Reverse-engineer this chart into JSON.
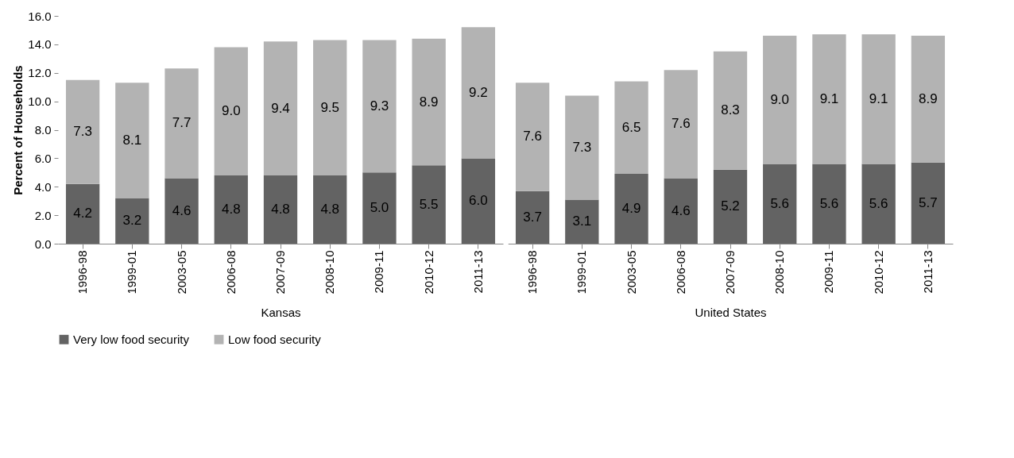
{
  "chart_data": [
    {
      "type": "bar",
      "stacked": true,
      "xlabel": "Kansas",
      "ylabel": "Percent of Households",
      "categories": [
        "1996-98",
        "1999-01",
        "2003-05",
        "2006-08",
        "2007-09",
        "2008-10",
        "2009-11",
        "2010-12",
        "2011-13"
      ],
      "series": [
        {
          "name": "Very low food security",
          "color": "#636363",
          "values": [
            4.2,
            3.2,
            4.6,
            4.8,
            4.8,
            4.8,
            5.0,
            5.5,
            6.0
          ],
          "value_labels": [
            "4.2",
            "3.2",
            "4.6",
            "4.8",
            "4.8",
            "4.8",
            "5.0",
            "5.5",
            "6.0"
          ]
        },
        {
          "name": "Low food security",
          "color": "#b3b3b3",
          "values": [
            7.3,
            8.1,
            7.7,
            9.0,
            9.4,
            9.5,
            9.3,
            8.9,
            9.2
          ],
          "value_labels": [
            "7.3",
            "8.1",
            "7.7",
            "9.0",
            "9.4",
            "9.5",
            "9.3",
            "8.9",
            "9.2"
          ]
        }
      ],
      "ylim": [
        0,
        16
      ],
      "yticks": [
        {
          "value": 0,
          "label": "0.0"
        },
        {
          "value": 2,
          "label": "2.0"
        },
        {
          "value": 4,
          "label": "4.0"
        },
        {
          "value": 6,
          "label": "6.0"
        },
        {
          "value": 8,
          "label": "8.0"
        },
        {
          "value": 10,
          "label": "10.0"
        },
        {
          "value": 12,
          "label": "12.0"
        },
        {
          "value": 14,
          "label": "14.0"
        },
        {
          "value": 16,
          "label": "16.0"
        }
      ],
      "legend": "bottom"
    },
    {
      "type": "bar",
      "stacked": true,
      "xlabel": "United States",
      "categories": [
        "1996-98",
        "1999-01",
        "2003-05",
        "2006-08",
        "2007-09",
        "2008-10",
        "2009-11",
        "2010-12",
        "2011-13"
      ],
      "series": [
        {
          "name": "Very low food security",
          "color": "#636363",
          "values": [
            3.7,
            3.1,
            4.9,
            4.6,
            5.2,
            5.6,
            5.6,
            5.6,
            5.7
          ],
          "value_labels": [
            "3.7",
            "3.1",
            "4.9",
            "4.6",
            "5.2",
            "5.6",
            "5.6",
            "5.6",
            "5.7"
          ]
        },
        {
          "name": "Low food security",
          "color": "#b3b3b3",
          "values": [
            7.6,
            7.3,
            6.5,
            7.6,
            8.3,
            9.0,
            9.1,
            9.1,
            8.9
          ],
          "value_labels": [
            "7.6",
            "7.3",
            "6.5",
            "7.6",
            "8.3",
            "9.0",
            "9.1",
            "9.1",
            "8.9"
          ]
        }
      ],
      "ylim": [
        0,
        16
      ],
      "yticks": [
        {
          "value": 0,
          "label": "0.0"
        },
        {
          "value": 2,
          "label": "2.0"
        },
        {
          "value": 4,
          "label": "4.0"
        },
        {
          "value": 6,
          "label": "6.0"
        },
        {
          "value": 8,
          "label": "8.0"
        },
        {
          "value": 10,
          "label": "10.0"
        },
        {
          "value": 12,
          "label": "12.0"
        },
        {
          "value": 14,
          "label": "14.0"
        },
        {
          "value": 16,
          "label": "16.0"
        }
      ],
      "tick_labels": "x",
      "legend": "bottom"
    }
  ]
}
